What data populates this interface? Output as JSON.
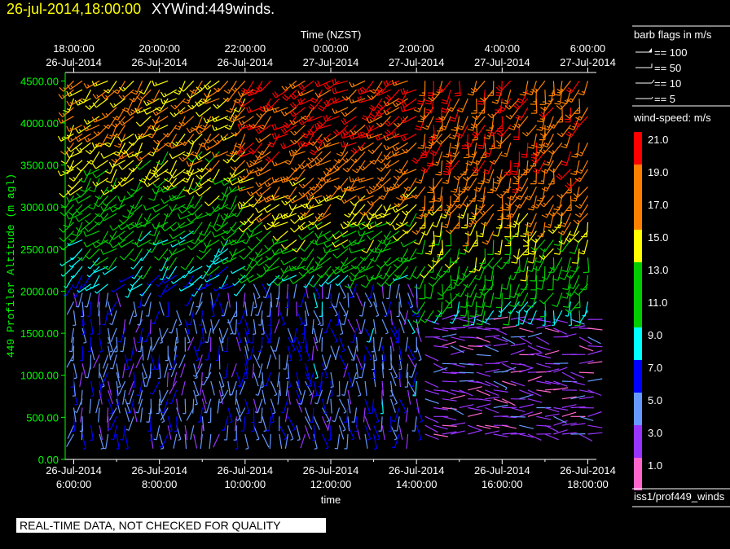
{
  "header": {
    "date_label": "26-jul-2014,18:00:00",
    "product_label": "XYWind:449winds."
  },
  "footer": {
    "quality_notice": "REAL-TIME DATA, NOT CHECKED FOR QUALITY"
  },
  "legend": {
    "barb_title": "barb flags in m/s",
    "barb_items": [
      "== 100",
      "== 50",
      "== 10",
      "== 5"
    ],
    "speed_title": "wind-speed: m/s",
    "speed_labels": [
      "21.0",
      "19.0",
      "17.0",
      "15.0",
      "13.0",
      "11.0",
      "9.0",
      "7.0",
      "5.0",
      "3.0",
      "1.0"
    ],
    "speed_colors": [
      "#ff0000",
      "#ff8000",
      "#ff8000",
      "#ffff00",
      "#00cc00",
      "#00cc00",
      "#00ffff",
      "#0000ff",
      "#6699ff",
      "#9933ff",
      "#ff66cc"
    ],
    "source_label": "iss1/prof449_winds"
  },
  "colors": {
    "bottom_axis": "#ffffff",
    "left_axis": "#00ff00",
    "background": "#000000"
  },
  "chart_data": {
    "type": "scatter",
    "title": "XYWind:449winds.",
    "xlabel": "time",
    "x2label": "Time (NZST)",
    "ylabel": "449 Profiler Altitude (m agl)",
    "ylim": [
      0,
      4600
    ],
    "xlim_hours": [
      5.8,
      18.2
    ],
    "yticks": [
      "0.00",
      "500.00",
      "1000.00",
      "1500.00",
      "2000.00",
      "2500.00",
      "3000.00",
      "3500.00",
      "4000.00",
      "4500.00"
    ],
    "xticks_bottom": [
      {
        "date": "26-Jul-2014",
        "time": "6:00:00"
      },
      {
        "date": "26-Jul-2014",
        "time": "8:00:00"
      },
      {
        "date": "26-Jul-2014",
        "time": "10:00:00"
      },
      {
        "date": "26-Jul-2014",
        "time": "12:00:00"
      },
      {
        "date": "26-Jul-2014",
        "time": "14:00:00"
      },
      {
        "date": "26-Jul-2014",
        "time": "16:00:00"
      },
      {
        "date": "26-Jul-2014",
        "time": "18:00:00"
      }
    ],
    "xticks_top": [
      {
        "time": "18:00:00",
        "date": "26-Jul-2014"
      },
      {
        "time": "20:00:00",
        "date": "26-Jul-2014"
      },
      {
        "time": "22:00:00",
        "date": "26-Jul-2014"
      },
      {
        "time": "0:00:00",
        "date": "27-Jul-2014"
      },
      {
        "time": "2:00:00",
        "date": "27-Jul-2014"
      },
      {
        "time": "4:00:00",
        "date": "27-Jul-2014"
      },
      {
        "time": "6:00:00",
        "date": "27-Jul-2014"
      }
    ],
    "time_step_hours": 0.2,
    "altitude_start_m": 300,
    "altitude_step_m": 105,
    "altitude_levels": 41,
    "regimes": [
      {
        "from_hour": 6.0,
        "to_hour": 10.0,
        "low_dir_deg": 185,
        "low_speed": 6,
        "high_dir_deg": 225,
        "high_speed": 14,
        "transition_m": 2000
      },
      {
        "from_hour": 10.0,
        "to_hour": 14.0,
        "low_dir_deg": 175,
        "low_speed": 6.5,
        "high_dir_deg": 230,
        "high_speed": 18,
        "transition_m": 2100
      },
      {
        "from_hour": 14.0,
        "to_hour": 18.0,
        "low_dir_deg": 95,
        "low_speed": 3.5,
        "high_dir_deg": 200,
        "high_speed": 17,
        "transition_m": 1700
      }
    ]
  }
}
